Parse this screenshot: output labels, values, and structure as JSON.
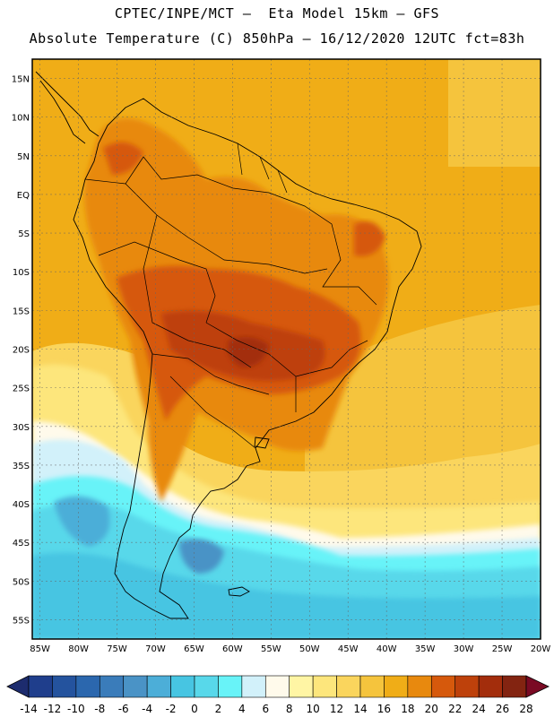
{
  "title_line1": "CPTEC/INPE/MCT –  Eta Model 15km – GFS",
  "title_line2": "Absolute Temperature (C) 850hPa – 16/12/2020 12UTC fct=83h",
  "map": {
    "lat_labels": [
      "15N",
      "10N",
      "5N",
      "EQ",
      "5S",
      "10S",
      "15S",
      "20S",
      "25S",
      "30S",
      "35S",
      "40S",
      "45S",
      "50S",
      "55S"
    ],
    "lon_labels": [
      "85W",
      "80W",
      "75W",
      "70W",
      "65W",
      "60W",
      "55W",
      "50W",
      "45W",
      "40W",
      "35W",
      "30W",
      "25W",
      "20W"
    ],
    "lat_range": [
      17.5,
      -57.5
    ],
    "lon_range": [
      -86,
      -20
    ]
  },
  "colorbar": {
    "labels": [
      "-14",
      "-12",
      "-10",
      "-8",
      "-6",
      "-4",
      "-2",
      "0",
      "2",
      "4",
      "6",
      "8",
      "10",
      "12",
      "14",
      "16",
      "18",
      "20",
      "22",
      "24",
      "26",
      "28"
    ],
    "colors": [
      "#1f3e8c",
      "#24539e",
      "#2b67ae",
      "#3a7cba",
      "#4a93c6",
      "#4caed8",
      "#47c5e2",
      "#58d8ea",
      "#68f3f8",
      "#d2f1fa",
      "#fffaeb",
      "#fff5a4",
      "#fde67c",
      "#fad55d",
      "#f5c43d",
      "#f0ad17",
      "#e8890e",
      "#d6590c",
      "#be410b",
      "#a32d0c",
      "#832411"
    ],
    "under_color": "#1d2c6e",
    "over_color": "#7a0a24"
  }
}
